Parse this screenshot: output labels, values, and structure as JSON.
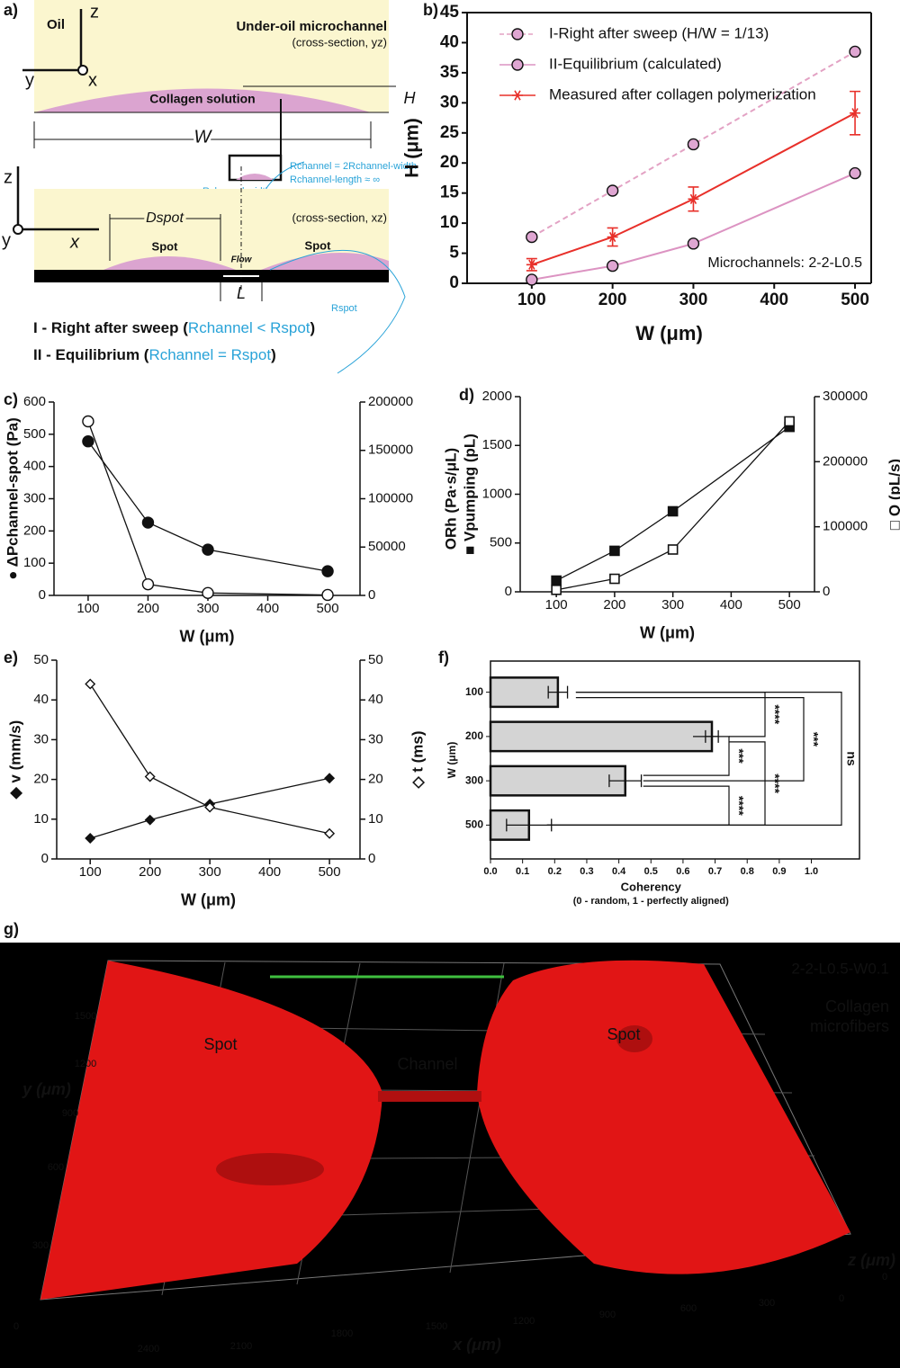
{
  "diagram": {
    "panel": "a)",
    "oil": "Oil",
    "axis_z1": "z",
    "axis_y1": "y",
    "axis_x1": "x",
    "title": "Under-oil microchannel",
    "section_yz": "(cross-section, yz)",
    "solution": "Collagen solution",
    "H": "H",
    "W": "W",
    "r_channel": "Rchannel = 2Rchannel-width",
    "r_length": "Rchannel-length ≈ ∞",
    "r_width": "Rchannel-width",
    "axis_z2": "z",
    "axis_y2": "y",
    "axis_x2": "x",
    "d_spot": "Dspot",
    "section_xz": "(cross-section, xz)",
    "spot_left": "Spot",
    "spot_right": "Spot",
    "flow": "Flow",
    "L": "L",
    "r_spot": "Rspot",
    "state1_a": "I - Right after sweep (",
    "state1_b": "Rchannel < Rspot",
    "state1_c": ")",
    "state2_a": "II - Equilibrium (",
    "state2_b": "Rchannel = Rspot",
    "state2_c": ")"
  },
  "chart_data": [
    {
      "type": "line",
      "panel": "b)",
      "xlabel": "W (μm)",
      "ylabel": "H (μm)",
      "x": [
        100,
        200,
        300,
        500
      ],
      "xlim": [
        20,
        520
      ],
      "xticks": [
        100,
        200,
        300,
        400,
        500
      ],
      "ylim": [
        0,
        45
      ],
      "yticks": [
        0,
        5,
        10,
        15,
        20,
        25,
        30,
        35,
        40,
        45
      ],
      "series": [
        {
          "name": "I-Right after sweep (H/W = 1/13)",
          "color": "#e3a2c4",
          "line": "dashed",
          "marker": "circle",
          "fill": "#dfa6d2",
          "values": [
            7.7,
            15.4,
            23.1,
            38.5
          ]
        },
        {
          "name": "II-Equilibrium (calculated)",
          "color": "#dc93c2",
          "line": "solid",
          "marker": "circle",
          "fill": "#dfa6d2",
          "values": [
            0.6,
            2.9,
            6.6,
            18.3
          ]
        },
        {
          "name": "Measured after collagen polymerization",
          "color": "#e8302a",
          "line": "solid",
          "marker": "asterisk",
          "values": [
            3.1,
            7.7,
            14.0,
            28.3
          ],
          "errors": [
            1.0,
            1.5,
            2.0,
            3.6
          ]
        }
      ],
      "annotation": "Microchannels: 2-2-L0.5"
    },
    {
      "type": "line",
      "panel": "c)",
      "xlabel": "W (μm)",
      "ylabel": "● ΔPchannel-spot (Pa)",
      "y2label": "ORh (Pa·s/μL)",
      "x": [
        100,
        200,
        300,
        500
      ],
      "xlim": [
        43,
        554
      ],
      "xticks": [
        100,
        200,
        300,
        400,
        500
      ],
      "ylim": [
        0,
        600
      ],
      "yticks": [
        0,
        100,
        200,
        300,
        400,
        500,
        600
      ],
      "y2lim": [
        0,
        200000
      ],
      "y2ticks": [
        0,
        50000,
        100000,
        150000,
        200000
      ],
      "series": [
        {
          "name": "ΔP",
          "color": "#111111",
          "line": "solid",
          "marker": "circle",
          "fill": "#111111",
          "values": [
            478,
            226,
            142,
            75
          ]
        },
        {
          "name": "Rh",
          "color": "#111111",
          "line": "solid",
          "marker": "circle",
          "fill": "#ffffff",
          "axis": "y2",
          "values": [
            180000,
            11500,
            2500,
            500
          ]
        }
      ]
    },
    {
      "type": "line",
      "panel": "d)",
      "xlabel": "W (μm)",
      "ylabel": "■ Vpumping (pL)",
      "y2label": "□ Q (pL/s)",
      "x": [
        100,
        200,
        300,
        500
      ],
      "xlim": [
        38,
        543
      ],
      "xticks": [
        100,
        200,
        300,
        400,
        500
      ],
      "ylim": [
        0,
        2000
      ],
      "yticks": [
        0,
        500,
        1000,
        1500,
        2000
      ],
      "y2lim": [
        0,
        300000
      ],
      "y2ticks": [
        0,
        100000,
        200000,
        300000
      ],
      "series": [
        {
          "name": "V",
          "color": "#111111",
          "line": "solid",
          "marker": "square",
          "fill": "#111111",
          "values": [
            115,
            420,
            825,
            1690
          ]
        },
        {
          "name": "Q",
          "color": "#111111",
          "line": "solid",
          "marker": "square",
          "fill": "#ffffff",
          "axis": "y2",
          "values": [
            3000,
            20000,
            65000,
            262000
          ]
        }
      ]
    },
    {
      "type": "line",
      "panel": "e)",
      "xlabel": "W (μm)",
      "ylabel": "◆ v (mm/s)",
      "y2label": "◇ t (ms)",
      "x": [
        100,
        200,
        300,
        500
      ],
      "xlim": [
        44,
        551
      ],
      "xticks": [
        100,
        200,
        300,
        400,
        500
      ],
      "ylim": [
        0,
        50
      ],
      "yticks": [
        0,
        10,
        20,
        30,
        40,
        50
      ],
      "y2lim": [
        0,
        50
      ],
      "y2ticks": [
        0,
        10,
        20,
        30,
        40,
        50
      ],
      "series": [
        {
          "name": "v",
          "color": "#111111",
          "line": "solid",
          "marker": "diamond",
          "fill": "#111111",
          "values": [
            5.2,
            9.8,
            13.8,
            20.3
          ]
        },
        {
          "name": "t",
          "color": "#111111",
          "line": "solid",
          "marker": "diamond",
          "fill": "#ffffff",
          "axis": "y2",
          "values": [
            44.0,
            20.7,
            13.0,
            6.4
          ]
        }
      ]
    },
    {
      "type": "hbar",
      "panel": "f)",
      "xlabel": "Coherency",
      "xsublabel": "(0 - random, 1 - perfectly aligned)",
      "ylabel": "W (μm)",
      "categories": [
        "100",
        "200",
        "300",
        "500"
      ],
      "values": [
        0.21,
        0.69,
        0.42,
        0.12
      ],
      "errors": [
        0.03,
        0.02,
        0.05,
        0.07
      ],
      "color": "#d4d4d4",
      "xlim": [
        0,
        1.15
      ],
      "xticks": [
        {
          "value": 0,
          "label": "0.0"
        },
        0.1,
        0.2,
        0.3,
        0.4,
        0.5,
        0.6,
        0.7,
        0.8,
        0.9,
        {
          "value": 1,
          "label": "1.0"
        }
      ],
      "significance": [
        "****",
        "***",
        "****",
        "****",
        "***",
        "ns"
      ]
    }
  ],
  "image": {
    "panel": "g)",
    "title": "2-2-L0.5-W0.1",
    "legend": [
      "Collagen",
      "microfibers"
    ],
    "labels": [
      "Spot",
      "Channel",
      "Spot"
    ],
    "y_label": "y (μm)",
    "x_label": "x (μm)",
    "z_label": "z (μm)",
    "y_ticks": [
      1500,
      1200,
      900,
      600,
      300,
      0
    ],
    "x_ticks": [
      2400,
      2100,
      1800,
      1500,
      1200,
      900,
      600,
      300,
      0
    ],
    "z_ticks": [
      0
    ]
  }
}
